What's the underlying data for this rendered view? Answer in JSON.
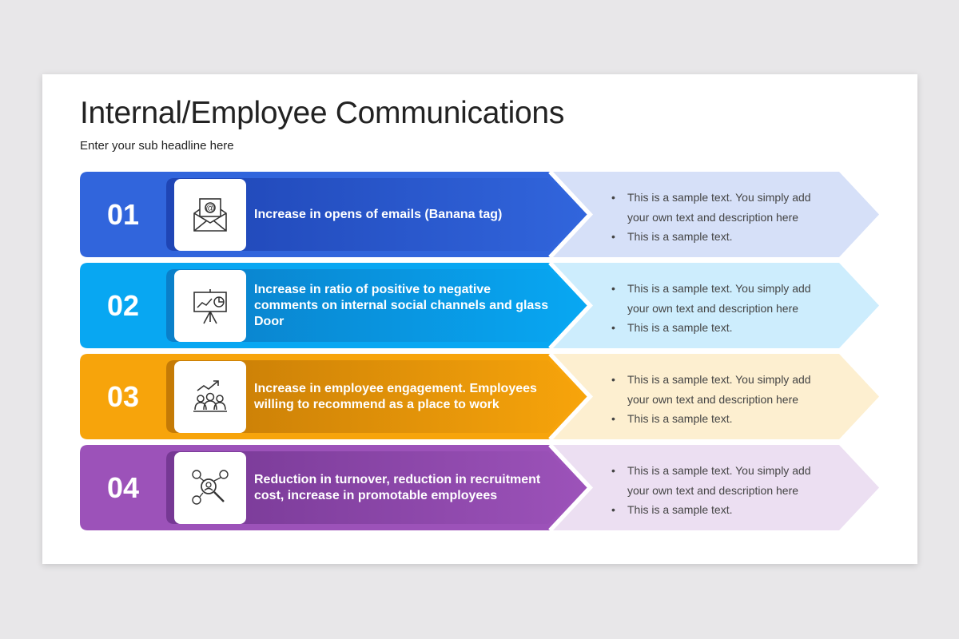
{
  "title": "Internal/Employee Communications",
  "subtitle": "Enter your sub headline here",
  "rows": [
    {
      "number": "01",
      "icon": "email-icon",
      "text": "Increase in opens of emails (Banana tag)",
      "color": "#3165dc",
      "dark": "#1f45b5",
      "light": "#d6e0f8",
      "bullets": [
        "This is a sample text. You simply add your own text and description here",
        "This is a sample text."
      ]
    },
    {
      "number": "02",
      "icon": "presentation-chart-icon",
      "text": "Increase in ratio of positive to negative comments on internal social channels and glass Door",
      "color": "#08a7f2",
      "dark": "#0a7fc9",
      "light": "#cdedfd",
      "bullets": [
        "This is a sample text. You simply add your own text and description here",
        "This is a sample text."
      ]
    },
    {
      "number": "03",
      "icon": "team-growth-icon",
      "text": "Increase in employee engagement. Employees willing to recommend as a place to work",
      "color": "#f7a40b",
      "dark": "#c47a06",
      "light": "#fdefd0",
      "bullets": [
        "This is a sample text. You simply add your own text and description here",
        "This is a sample text."
      ]
    },
    {
      "number": "04",
      "icon": "people-search-icon",
      "text": "Reduction in turnover, reduction in recruitment cost, increase in promotable employees",
      "color": "#9c52b9",
      "dark": "#763894",
      "light": "#ecdff2",
      "bullets": [
        "This is a sample text. You simply add your own text and description here",
        "This is a sample text."
      ]
    }
  ]
}
